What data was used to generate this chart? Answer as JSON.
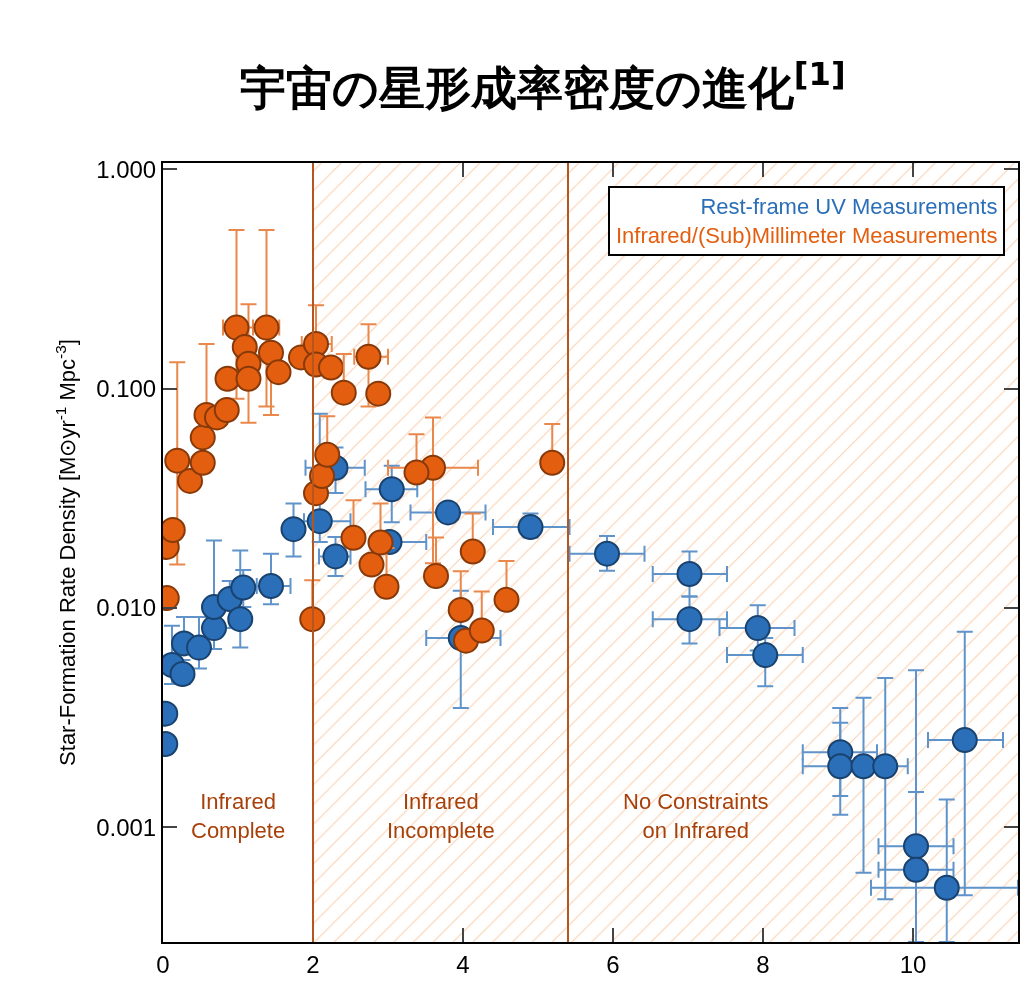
{
  "chart_data": {
    "type": "scatter",
    "title": "宇宙の星形成率密度の進化$^{[1]}$",
    "ylabel": "Star-Formation Rate Density [M⊙yr$^{-1}$ Mpc$^{-3}$]",
    "log": "y",
    "xlim": [
      0,
      11.4
    ],
    "xticks": [
      0,
      2,
      4,
      6,
      8,
      10
    ],
    "ylim": [
      0.0003,
      1.07
    ],
    "yticks": [
      {
        "value": 1,
        "label": "1.000"
      },
      {
        "value": 0.1,
        "label": "0.100"
      },
      {
        "value": 0.01,
        "label": "0.010"
      },
      {
        "value": 0.001,
        "label": "0.001"
      }
    ],
    "annotations": [
      "Infrared\nComplete"
    ],
    "legend": "top right",
    "marker": "circle",
    "bands": [
      {
        "axis": "x",
        "from": 2,
        "to": 5.4,
        "label": "Infrared\nIncomplete",
        "color": "#f5a464"
      },
      {
        "axis": "x",
        "from": 5.4,
        "to": 11.4,
        "label": "No Constraints\non Infrared",
        "color": "#f5a464"
      }
    ],
    "ref_lines": [
      {
        "axis": "x",
        "value": 2,
        "color": "#b5561e"
      },
      {
        "axis": "x",
        "value": 5.4,
        "color": "#b5561e"
      }
    ],
    "series": [
      {
        "name": "Rest-frame UV Measurements",
        "color": "#2a6fb8",
        "x": [
          0.03,
          0.03,
          0.12,
          0.26,
          0.28,
          0.48,
          0.68,
          0.68,
          0.89,
          1.03,
          1.07,
          1.44,
          1.74,
          2.09,
          2.3,
          2.3,
          3.05,
          3.02,
          3.8,
          4.9,
          3.97,
          5.92,
          7.02,
          7.02,
          7.93,
          8.03,
          9.03,
          9.03,
          9.34,
          9.63,
          10.04,
          10.04,
          10.45,
          10.69
        ],
        "values": [
          0.0033,
          0.0024,
          0.0055,
          0.005,
          0.0069,
          0.0066,
          0.0081,
          0.0101,
          0.011,
          0.0089,
          0.0124,
          0.0126,
          0.0229,
          0.0249,
          0.0436,
          0.0172,
          0.0348,
          0.02,
          0.0273,
          0.0234,
          0.0073,
          0.0177,
          0.0143,
          0.0089,
          0.0081,
          0.0061,
          0.0022,
          0.0019,
          0.0019,
          0.0019,
          0.00082,
          0.00064,
          0.00053,
          0.0025
        ],
        "errors": [
          null,
          null,
          [
            0.0045,
            0.0083
          ],
          [
            0.0045,
            0.0058
          ],
          [
            0.0069,
            0.0091
          ],
          [
            0.0053,
            0.0091
          ],
          [
            0.0065,
            0.0081
          ],
          [
            0.0101,
            0.0203
          ],
          [
            0.0081,
            0.0133
          ],
          [
            0.0066,
            0.0183
          ],
          [
            0.0101,
            0.0149
          ],
          [
            0.0104,
            0.0177
          ],
          [
            0.0172,
            0.03
          ],
          [
            0.02,
            0.077
          ],
          [
            0.0335,
            0.054
          ],
          [
            0.014,
            0.0211
          ],
          [
            0.0246,
            0.0446
          ],
          null,
          null,
          [
            0.021,
            0.027
          ],
          [
            0.0035,
            0.012
          ],
          [
            0.0148,
            0.0213
          ],
          [
            0.0113,
            0.0181
          ],
          [
            0.0069,
            0.0113
          ],
          [
            0.0064,
            0.0103
          ],
          [
            0.0044,
            0.0073
          ],
          [
            0.00139,
            0.0035
          ],
          [
            0.00114,
            0.003
          ],
          [
            0.00062,
            0.0039
          ],
          [
            0.00047,
            0.0048
          ],
          [
            0.0003,
            0.0052
          ],
          [
            0.0003,
            0.00145
          ],
          [
            0.0003,
            0.00134
          ],
          [
            0.00049,
            0.0078
          ]
        ],
        "xerrors": [
          null,
          null,
          null,
          null,
          null,
          null,
          null,
          null,
          null,
          null,
          null,
          [
            1.25,
            1.7
          ],
          null,
          [
            1.88,
            2.5
          ],
          [
            1.9,
            2.69
          ],
          [
            2.08,
            2.5
          ],
          [
            2.7,
            3.39
          ],
          [
            3.02,
            3.51
          ],
          [
            3.3,
            4.3
          ],
          [
            4.4,
            5.42
          ],
          [
            3.51,
            4.5
          ],
          [
            5.42,
            6.42
          ],
          [
            6.53,
            7.52
          ],
          [
            6.53,
            7.52
          ],
          [
            7.42,
            8.42
          ],
          [
            7.52,
            8.53
          ],
          [
            8.53,
            9.52
          ],
          [
            8.53,
            9.52
          ],
          null,
          [
            9.43,
            9.93
          ],
          [
            9.54,
            10.54
          ],
          [
            9.54,
            10.54
          ],
          [
            9.44,
            11.4
          ],
          [
            10.2,
            11.2
          ]
        ]
      },
      {
        "name": "Infrared/(Sub)Millimeter Measurements",
        "color": "#e35f0f",
        "x": [
          0.05,
          0.13,
          0.05,
          0.19,
          0.36,
          0.53,
          0.53,
          0.58,
          0.72,
          0.85,
          0.86,
          0.98,
          1.09,
          1.14,
          1.14,
          1.38,
          1.44,
          1.54,
          1.84,
          2.04,
          2.04,
          2.24,
          2.74,
          2.87,
          2.78,
          2.04,
          2.12,
          3.6,
          4.04
        ],
        "values": [
          0.019,
          0.0227,
          0.0111,
          0.047,
          0.038,
          0.046,
          0.06,
          0.076,
          0.074,
          0.08,
          0.111,
          0.19,
          0.155,
          0.13,
          0.111,
          0.19,
          0.146,
          0.119,
          0.139,
          0.16,
          0.129,
          0.125,
          0.14,
          0.095,
          0.0158,
          0.0334,
          0.04,
          0.0436,
          0.0071
        ],
        "errors": [
          null,
          null,
          null,
          [
            0.0158,
            0.132
          ],
          null,
          null,
          null,
          [
            0.076,
            0.16
          ],
          null,
          null,
          null,
          [
            0.09,
            0.53
          ],
          null,
          [
            0.07,
            0.243
          ],
          null,
          [
            0.083,
            0.53
          ],
          [
            0.076,
            0.146
          ],
          null,
          null,
          [
            0.129,
            0.24
          ],
          null,
          null,
          [
            0.083,
            0.197
          ],
          null,
          null,
          null,
          null,
          [
            0.016,
            0.074
          ],
          null
        ],
        "xerrors": [
          null,
          null,
          null,
          null,
          null,
          null,
          null,
          null,
          null,
          null,
          null,
          [
            0.8,
            1.2
          ],
          null,
          null,
          null,
          [
            1.25,
            1.55
          ],
          null,
          null,
          null,
          [
            1.85,
            2.25
          ],
          null,
          null,
          [
            2.55,
            3.0
          ],
          null,
          null,
          null,
          null,
          [
            3.0,
            4.2
          ],
          null
        ]
      },
      {
        "color": "#e35f0f",
        "x": [
          1.99,
          2.19,
          2.41,
          2.54,
          2.9,
          2.98,
          3.38,
          3.64,
          4.13,
          5.19,
          3.97,
          4.58,
          4.25
        ],
        "values": [
          0.0089,
          0.05,
          0.096,
          0.0209,
          0.0199,
          0.0125,
          0.0415,
          0.014,
          0.0181,
          0.046,
          0.0098,
          0.0109,
          0.0079
        ],
        "errors": [
          [
            0.0089,
            0.0134
          ],
          [
            0.05,
            0.075
          ],
          [
            0.096,
            0.144
          ],
          [
            0.0209,
            0.031
          ],
          [
            0.0199,
            0.03
          ],
          [
            0.0125,
            0.0188
          ],
          [
            0.0415,
            0.062
          ],
          [
            0.014,
            0.021
          ],
          [
            0.0181,
            0.027
          ],
          [
            0.046,
            0.069
          ],
          [
            0.0098,
            0.0147
          ],
          [
            0.0109,
            0.0164
          ],
          [
            0.0079,
            0.0119
          ]
        ]
      }
    ]
  }
}
